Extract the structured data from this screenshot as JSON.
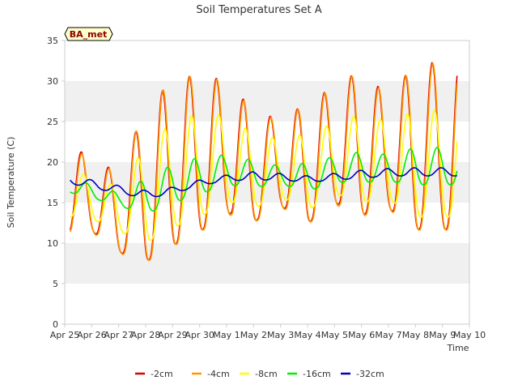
{
  "chart_data": {
    "type": "line",
    "title": "Soil Temperatures Set A",
    "xlabel": "Time",
    "ylabel": "Soil Temperature (C)",
    "station_badge": "BA_met",
    "x_ticks": [
      "Apr 25",
      "Apr 26",
      "Apr 27",
      "Apr 28",
      "Apr 29",
      "Apr 30",
      "May 1",
      "May 2",
      "May 3",
      "May 4",
      "May 5",
      "May 6",
      "May 7",
      "May 8",
      "May 9",
      "May 10"
    ],
    "y_ticks": [
      0,
      5,
      10,
      15,
      20,
      25,
      30,
      35
    ],
    "xlim": [
      "Apr 25",
      "May 10"
    ],
    "ylim": [
      0,
      35
    ],
    "grid": "horizontal bands",
    "legend_position": "bottom",
    "series": [
      {
        "name": "-2cm",
        "color": "#dd0000",
        "min": [
          11.3,
          11.5,
          8.9,
          7.7,
          9.7,
          11.4,
          13.8,
          12.6,
          14.6,
          12.4,
          15.0,
          13.5,
          14.3,
          11.7,
          null
        ],
        "max": [
          22.8,
          20.3,
          18.8,
          26.7,
          30.1,
          30.9,
          30.0,
          26.4,
          25.2,
          27.4,
          29.3,
          31.5,
          28.0,
          32.3,
          null
        ]
      },
      {
        "name": "-4cm",
        "color": "#ff9900",
        "min": [
          11.2,
          11.4,
          8.8,
          7.6,
          9.6,
          11.3,
          13.6,
          12.5,
          14.5,
          12.3,
          14.8,
          13.3,
          14.2,
          11.6,
          null
        ],
        "max": [
          22.6,
          20.1,
          18.7,
          26.6,
          30.2,
          30.8,
          29.9,
          26.3,
          25.1,
          27.3,
          29.2,
          31.4,
          27.9,
          32.2,
          null
        ]
      },
      {
        "name": "-8cm",
        "color": "#ffff00",
        "min": [
          13.3,
          13.0,
          11.5,
          10.0,
          11.9,
          13.2,
          15.2,
          14.3,
          15.7,
          14.0,
          16.1,
          15.0,
          15.4,
          13.2,
          null
        ],
        "max": [
          19.6,
          18.0,
          17.0,
          22.0,
          25.0,
          26.0,
          25.8,
          23.5,
          22.8,
          23.6,
          24.8,
          26.0,
          25.0,
          26.4,
          null
        ]
      },
      {
        "name": "-16cm",
        "color": "#00ee00",
        "min": [
          16.4,
          15.6,
          14.6,
          13.6,
          15.0,
          16.0,
          17.2,
          16.9,
          17.3,
          16.4,
          17.5,
          17.5,
          17.6,
          17.2,
          null
        ],
        "max": [
          18.3,
          17.2,
          16.2,
          18.0,
          19.7,
          20.6,
          20.9,
          20.2,
          19.5,
          19.9,
          20.7,
          21.3,
          20.9,
          21.8,
          null
        ]
      },
      {
        "name": "-32cm",
        "color": "#0000bb",
        "min": [
          17.5,
          16.8,
          16.2,
          15.5,
          16.1,
          17.1,
          17.7,
          17.8,
          17.8,
          17.5,
          17.8,
          18.0,
          18.3,
          18.3,
          null
        ],
        "max": [
          18.5,
          17.8,
          17.1,
          16.5,
          16.9,
          17.8,
          18.4,
          18.8,
          18.6,
          18.3,
          18.6,
          19.0,
          19.2,
          19.3,
          null
        ]
      }
    ]
  }
}
